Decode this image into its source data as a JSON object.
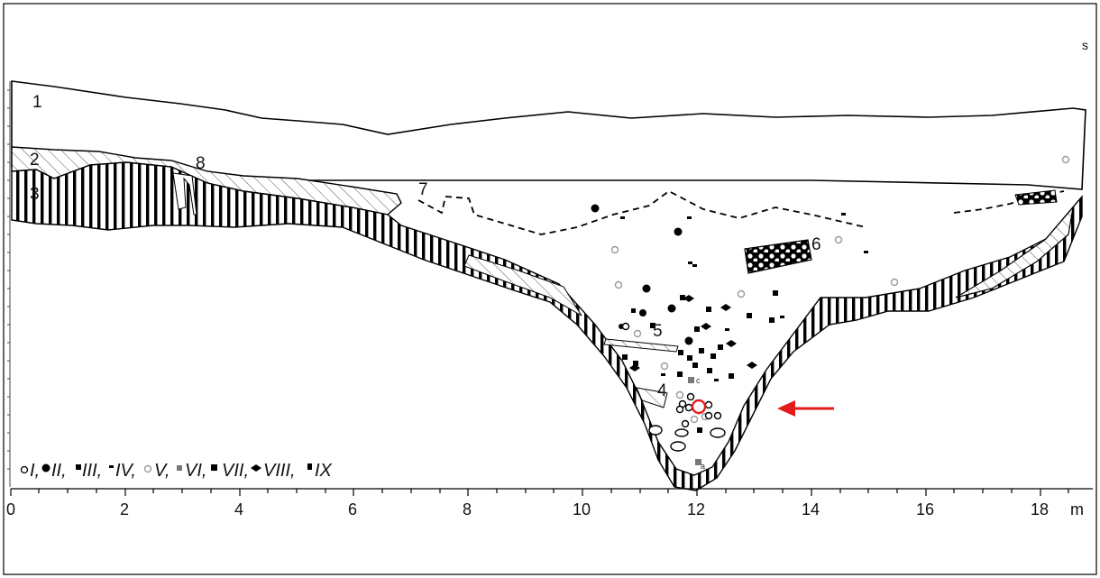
{
  "orientation_label": "s",
  "layer_labels": [
    "1",
    "2",
    "3",
    "4",
    "5",
    "6",
    "7",
    "8"
  ],
  "axis": {
    "ticks": [
      "0",
      "2",
      "4",
      "6",
      "8",
      "10",
      "12",
      "14",
      "16",
      "18"
    ],
    "unit": "m"
  },
  "find_markers": [
    "a",
    "c"
  ],
  "legend": {
    "items": [
      "I,",
      "II,",
      "III,",
      "IV,",
      "V,",
      "VI,",
      "VII,",
      "VIII,",
      "IX"
    ]
  },
  "colors": {
    "arrow": "#e31b1b",
    "ink": "#000000",
    "gray_find": "#9a9a9a"
  }
}
